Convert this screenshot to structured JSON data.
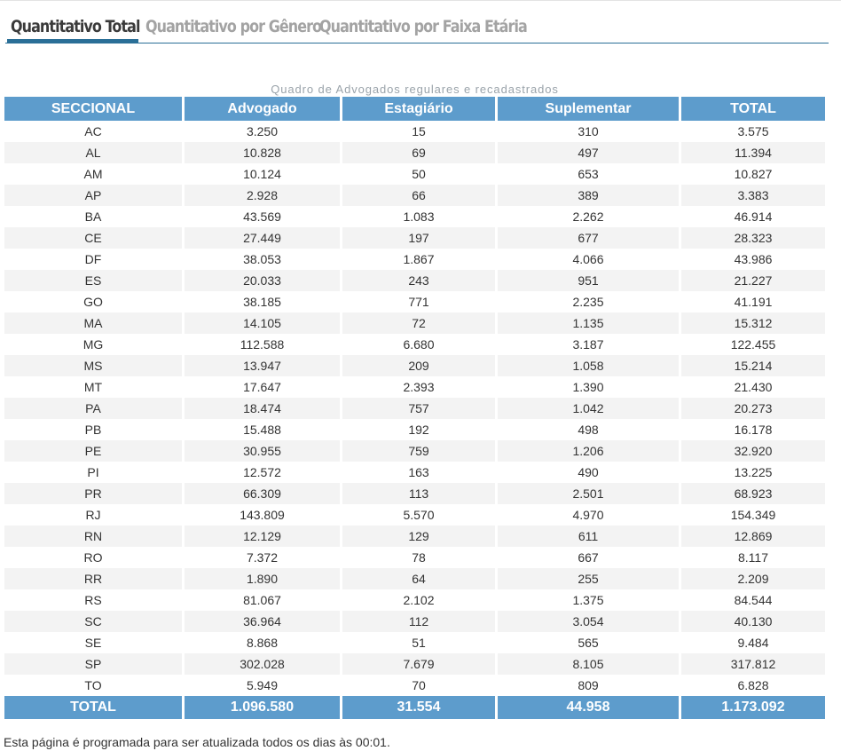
{
  "tabs": [
    {
      "label": "Quantitativo Total",
      "active": true
    },
    {
      "label": "Quantitativo por Gênero",
      "active": false
    },
    {
      "label": "Quantitativo por Faixa Etária",
      "active": false
    }
  ],
  "table": {
    "caption": "Quadro de Advogados regulares e recadastrados",
    "headers": [
      "SECCIONAL",
      "Advogado",
      "Estagiário",
      "Suplementar",
      "TOTAL"
    ],
    "rows": [
      [
        "AC",
        "3.250",
        "15",
        "310",
        "3.575"
      ],
      [
        "AL",
        "10.828",
        "69",
        "497",
        "11.394"
      ],
      [
        "AM",
        "10.124",
        "50",
        "653",
        "10.827"
      ],
      [
        "AP",
        "2.928",
        "66",
        "389",
        "3.383"
      ],
      [
        "BA",
        "43.569",
        "1.083",
        "2.262",
        "46.914"
      ],
      [
        "CE",
        "27.449",
        "197",
        "677",
        "28.323"
      ],
      [
        "DF",
        "38.053",
        "1.867",
        "4.066",
        "43.986"
      ],
      [
        "ES",
        "20.033",
        "243",
        "951",
        "21.227"
      ],
      [
        "GO",
        "38.185",
        "771",
        "2.235",
        "41.191"
      ],
      [
        "MA",
        "14.105",
        "72",
        "1.135",
        "15.312"
      ],
      [
        "MG",
        "112.588",
        "6.680",
        "3.187",
        "122.455"
      ],
      [
        "MS",
        "13.947",
        "209",
        "1.058",
        "15.214"
      ],
      [
        "MT",
        "17.647",
        "2.393",
        "1.390",
        "21.430"
      ],
      [
        "PA",
        "18.474",
        "757",
        "1.042",
        "20.273"
      ],
      [
        "PB",
        "15.488",
        "192",
        "498",
        "16.178"
      ],
      [
        "PE",
        "30.955",
        "759",
        "1.206",
        "32.920"
      ],
      [
        "PI",
        "12.572",
        "163",
        "490",
        "13.225"
      ],
      [
        "PR",
        "66.309",
        "113",
        "2.501",
        "68.923"
      ],
      [
        "RJ",
        "143.809",
        "5.570",
        "4.970",
        "154.349"
      ],
      [
        "RN",
        "12.129",
        "129",
        "611",
        "12.869"
      ],
      [
        "RO",
        "7.372",
        "78",
        "667",
        "8.117"
      ],
      [
        "RR",
        "1.890",
        "64",
        "255",
        "2.209"
      ],
      [
        "RS",
        "81.067",
        "2.102",
        "1.375",
        "84.544"
      ],
      [
        "SC",
        "36.964",
        "112",
        "3.054",
        "40.130"
      ],
      [
        "SE",
        "8.868",
        "51",
        "565",
        "9.484"
      ],
      [
        "SP",
        "302.028",
        "7.679",
        "8.105",
        "317.812"
      ],
      [
        "TO",
        "5.949",
        "70",
        "809",
        "6.828"
      ]
    ],
    "footer": [
      "TOTAL",
      "1.096.580",
      "31.554",
      "44.958",
      "1.173.092"
    ]
  },
  "note": "Esta página é programada para ser atualizada todos os dias às 00:01.",
  "colors": {
    "header_bg": "#5d9ccc",
    "accent": "#2a6f97",
    "inactive_tab": "#a3a3a3",
    "stripe": "#f3f3f3"
  }
}
